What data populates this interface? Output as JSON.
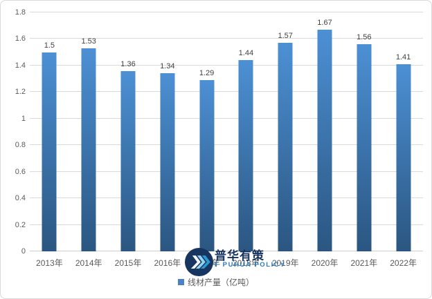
{
  "chart_data": {
    "type": "bar",
    "categories": [
      "2013年",
      "2014年",
      "2015年",
      "2016年",
      "2017年",
      "2018年",
      "2019年",
      "2020年",
      "2021年",
      "2022年"
    ],
    "values": [
      1.5,
      1.53,
      1.36,
      1.34,
      1.29,
      1.44,
      1.57,
      1.67,
      1.56,
      1.41
    ],
    "series": [
      {
        "name": "线材产量（亿吨）",
        "values": [
          1.5,
          1.53,
          1.36,
          1.34,
          1.29,
          1.44,
          1.57,
          1.67,
          1.56,
          1.41
        ]
      }
    ],
    "title": "",
    "xlabel": "",
    "ylabel": "",
    "ylim": [
      0,
      1.8
    ],
    "ytick_step": 0.2,
    "grid": true,
    "legend_position": "bottom",
    "data_labels": true
  },
  "colors": {
    "bar_top": "#4c90d4",
    "bar_bottom": "#2b5681",
    "legend_marker": "#4a82c2",
    "gridline": "#d9d9d9",
    "axis_label": "#595959",
    "data_label": "#404040",
    "chart_border": "#d9d9d9",
    "watermark_circle": "#16355f",
    "watermark_brand_color": "#16325c",
    "watermark_brand_en_color": "#2879bd",
    "chevron_1": "#f2f7fc",
    "chevron_2": "#8fd2f2",
    "chevron_3": "#2d9ad2"
  },
  "watermark": {
    "brand": "普华有策",
    "brand_en": "F PUHUA POLICY"
  }
}
